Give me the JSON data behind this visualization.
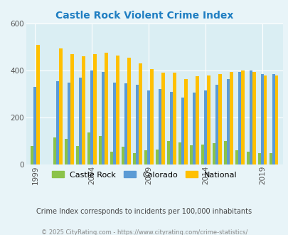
{
  "title": "Castle Rock Violent Crime Index",
  "subtitle": "Crime Index corresponds to incidents per 100,000 inhabitants",
  "footer": "© 2025 CityRating.com - https://www.cityrating.com/crime-statistics/",
  "years": [
    1999,
    2000,
    2001,
    2002,
    2003,
    2004,
    2005,
    2006,
    2007,
    2008,
    2009,
    2010,
    2011,
    2012,
    2013,
    2014,
    2015,
    2016,
    2017,
    2018,
    2019,
    2020
  ],
  "castle_rock": [
    80,
    0,
    115,
    110,
    80,
    135,
    120,
    55,
    75,
    50,
    60,
    65,
    100,
    95,
    83,
    85,
    90,
    100,
    62,
    55,
    50,
    50
  ],
  "colorado": [
    330,
    0,
    355,
    350,
    370,
    400,
    395,
    350,
    345,
    340,
    315,
    320,
    310,
    285,
    305,
    315,
    340,
    365,
    395,
    400,
    385,
    385
  ],
  "national": [
    510,
    0,
    495,
    470,
    460,
    470,
    475,
    465,
    455,
    430,
    405,
    390,
    390,
    365,
    375,
    380,
    385,
    395,
    400,
    395,
    380,
    380
  ],
  "castle_rock_color": "#8bc34a",
  "colorado_color": "#5b9bd5",
  "national_color": "#ffc000",
  "bg_color": "#e8f4f8",
  "plot_bg_color": "#daeef3",
  "title_color": "#1f7ec2",
  "subtitle_color": "#444444",
  "footer_color": "#888888",
  "grid_color": "#ffffff",
  "ylim": [
    0,
    600
  ],
  "yticks": [
    0,
    200,
    400,
    600
  ],
  "xtick_years": [
    1999,
    2004,
    2009,
    2014,
    2019
  ],
  "figsize": [
    4.06,
    3.3
  ],
  "dpi": 100
}
